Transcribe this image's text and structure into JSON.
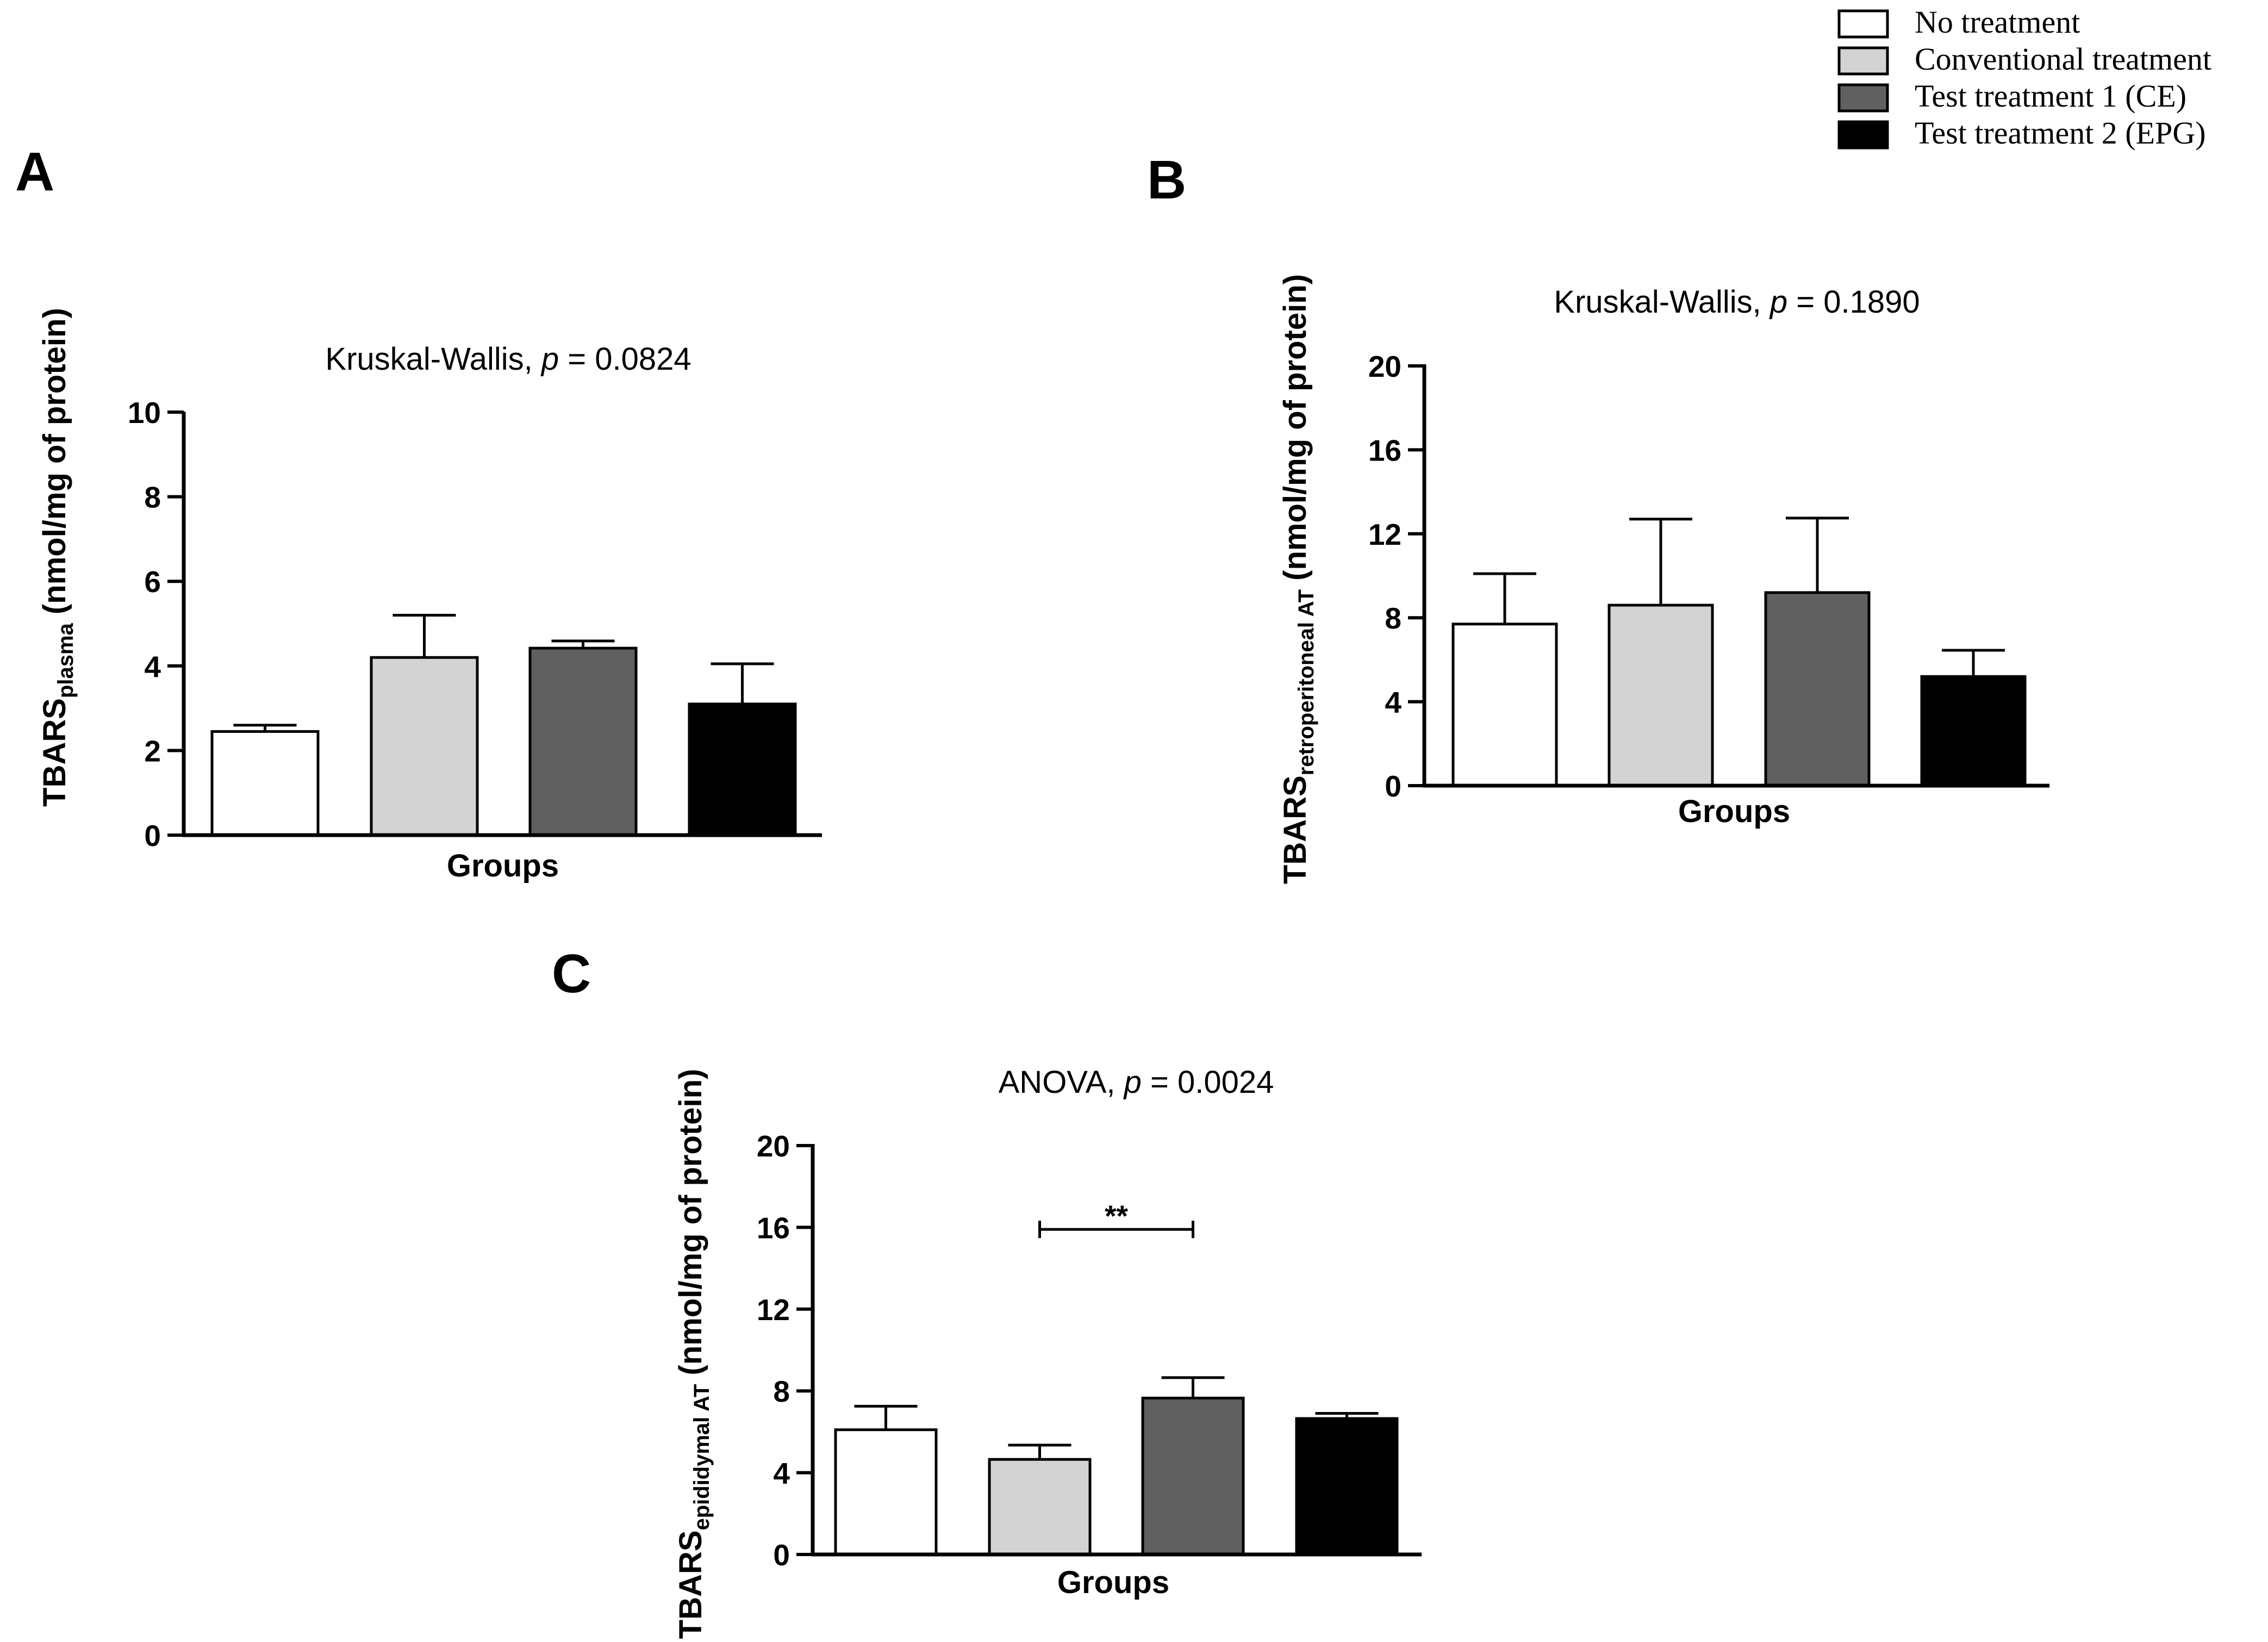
{
  "legend": {
    "placement": "top-right",
    "items": [
      {
        "label": "No treatment",
        "color": "#ffffff"
      },
      {
        "label": "Conventional treatment",
        "color": "#d3d3d3"
      },
      {
        "label": "Test treatment 1 (CE)",
        "color": "#606060"
      },
      {
        "label": "Test treatment 2 (EPG)",
        "color": "#000000"
      }
    ]
  },
  "chart_data": [
    {
      "panel": "A",
      "type": "bar",
      "title_prefix": "Kruskal-Wallis, ",
      "title_p": "p",
      "title_suffix": " = 0.0824",
      "ylabel_main": "TBARS",
      "ylabel_sub": "plasma",
      "ylabel_tail": " (nmol/mg of protein)",
      "xlabel": "Groups",
      "ylim": [
        0,
        10
      ],
      "yticks": [
        "0",
        "2",
        "4",
        "6",
        "8",
        "10"
      ],
      "categories": [
        "No treatment",
        "Conventional treatment",
        "Test treatment 1 (CE)",
        "Test treatment 2 (EPG)"
      ],
      "values": [
        2.45,
        4.2,
        4.42,
        3.1
      ],
      "errors": [
        0.15,
        1.0,
        0.17,
        0.95
      ],
      "significance": []
    },
    {
      "panel": "B",
      "type": "bar",
      "title_prefix": "Kruskal-Wallis, ",
      "title_p": "p",
      "title_suffix": " = 0.1890",
      "ylabel_main": "TBARS",
      "ylabel_sub": "retroperitoneal AT",
      "ylabel_tail": " (nmol/mg of protein)",
      "xlabel": "Groups",
      "ylim": [
        0,
        20
      ],
      "yticks": [
        "0",
        "4",
        "8",
        "12",
        "16",
        "20"
      ],
      "categories": [
        "No treatment",
        "Conventional treatment",
        "Test treatment 1 (CE)",
        "Test treatment 2 (EPG)"
      ],
      "values": [
        7.7,
        8.6,
        9.2,
        5.2
      ],
      "errors": [
        2.4,
        4.1,
        3.55,
        1.25
      ],
      "significance": []
    },
    {
      "panel": "C",
      "type": "bar",
      "title_prefix": "ANOVA, ",
      "title_p": "p",
      "title_suffix": " = 0.0024",
      "ylabel_main": "TBARS",
      "ylabel_sub": "epididymal AT",
      "ylabel_tail": " (nmol/mg of protein)",
      "xlabel": "Groups",
      "ylim": [
        0,
        20
      ],
      "yticks": [
        "0",
        "4",
        "8",
        "12",
        "16",
        "20"
      ],
      "categories": [
        "No treatment",
        "Conventional treatment",
        "Test treatment 1 (CE)",
        "Test treatment 2 (EPG)"
      ],
      "values": [
        6.1,
        4.65,
        7.65,
        6.65
      ],
      "errors": [
        1.15,
        0.7,
        1.0,
        0.25
      ],
      "significance": [
        {
          "from": 1,
          "to": 2,
          "y": 15.9,
          "label": "**"
        }
      ]
    }
  ]
}
